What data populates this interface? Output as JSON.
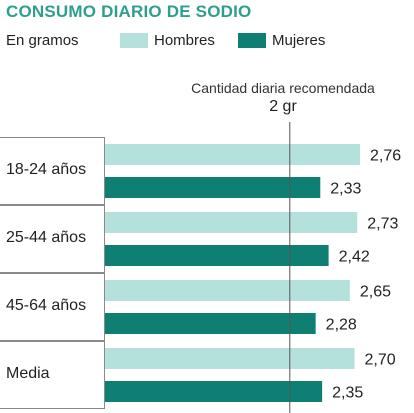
{
  "header": {
    "title": "CONSUMO DIARIO DE SODIO",
    "units": "En gramos"
  },
  "legend": [
    {
      "label": "Hombres",
      "color": "#b4e1dc"
    },
    {
      "label": "Mujeres",
      "color": "#0f7f73"
    }
  ],
  "reference": {
    "label": "Cantidad diaria recomendada",
    "value_label": "2 gr",
    "value": 2
  },
  "chart_data": {
    "type": "bar",
    "orientation": "horizontal",
    "title": "CONSUMO DIARIO DE SODIO",
    "units": "En gramos",
    "categories": [
      "18-24 años",
      "25-44 años",
      "45-64 años",
      "Media"
    ],
    "series": [
      {
        "name": "Hombres",
        "values": [
          2.76,
          2.73,
          2.65,
          2.7
        ],
        "labels": [
          "2,76",
          "2,73",
          "2,65",
          "2,70"
        ],
        "color": "#b4e1dc"
      },
      {
        "name": "Mujeres",
        "values": [
          2.33,
          2.42,
          2.28,
          2.35
        ],
        "labels": [
          "2,33",
          "2,42",
          "2,28",
          "2,35"
        ],
        "color": "#0f7f73"
      }
    ],
    "reference_line": 2,
    "xlim": [
      0,
      3
    ]
  }
}
